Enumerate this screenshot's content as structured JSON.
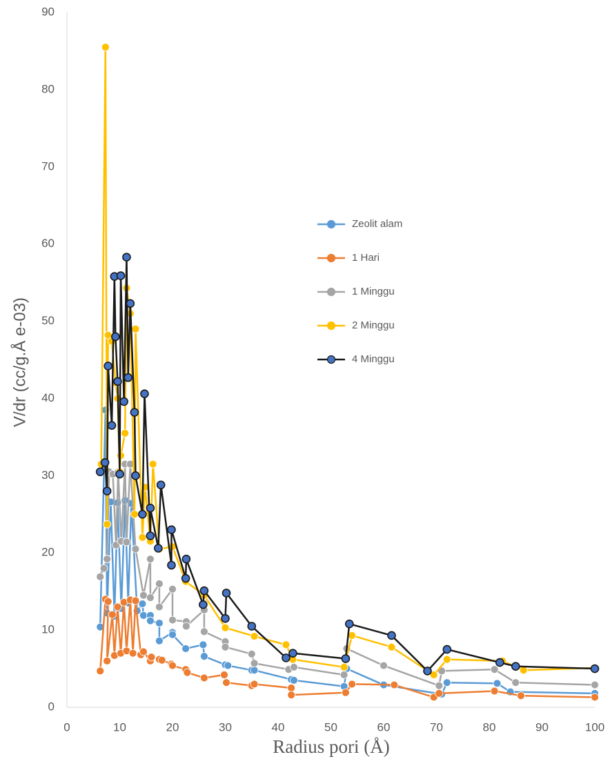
{
  "chart_data": {
    "type": "scatter-line",
    "xlabel": "Radius pori (Å)",
    "ylabel": "V/dr (cc/g.Å e-03)",
    "xlim": [
      0,
      100
    ],
    "xticks": [
      0,
      10,
      20,
      30,
      40,
      50,
      60,
      70,
      80,
      90,
      100
    ],
    "ylim": [
      0,
      90
    ],
    "yticks": [
      0,
      10,
      20,
      30,
      40,
      50,
      60,
      70,
      80,
      90
    ],
    "grid": false,
    "legend": "center",
    "series": [
      {
        "name": "Zeolit alam",
        "color": "#5b9bd5",
        "marker_color": "#5b9bd5",
        "x": [
          6.3,
          7.3,
          7.6,
          8.3,
          9,
          9.6,
          10.3,
          11,
          11.6,
          12.2,
          13.3,
          14.3,
          14.5,
          15.8,
          15.8,
          17.5,
          17.5,
          20,
          20,
          22.5,
          25.8,
          26,
          30,
          30.5,
          35,
          35.5,
          42.5,
          43,
          52.5,
          53,
          60,
          71,
          72,
          81.5,
          84,
          100
        ],
        "values": [
          10.4,
          38.5,
          12.2,
          26.6,
          11.8,
          26.5,
          12.8,
          26.8,
          13.5,
          26.4,
          12.5,
          13.4,
          11.9,
          11.9,
          11.2,
          10.9,
          8.6,
          9.7,
          9.4,
          7.6,
          8.1,
          6.6,
          5.5,
          5.4,
          4.8,
          4.8,
          3.6,
          3.5,
          2.7,
          5,
          2.9,
          1.7,
          3.2,
          3.1,
          2,
          1.8
        ]
      },
      {
        "name": "1 Hari",
        "color": "#ed7d31",
        "marker_color": "#ed7d31",
        "x": [
          6.3,
          7.3,
          7.8,
          7.6,
          8.6,
          9,
          9.6,
          10.2,
          10.8,
          11.3,
          12,
          12.5,
          13,
          14,
          14.5,
          15.8,
          16,
          17.5,
          18,
          19.8,
          20,
          22.5,
          22.8,
          26,
          29.8,
          30.2,
          35,
          35.5,
          42.5,
          42.5,
          52.8,
          54,
          62,
          69.5,
          70.5,
          81,
          86,
          100
        ],
        "values": [
          4.7,
          14,
          13.7,
          6,
          12,
          6.7,
          13,
          7,
          13.6,
          7.3,
          13.9,
          7,
          13.8,
          6.8,
          7.2,
          6,
          6.5,
          6.2,
          6.1,
          5.6,
          5.4,
          4.9,
          4.5,
          3.8,
          4.2,
          3.2,
          2.8,
          3,
          2.5,
          1.6,
          1.9,
          3,
          2.9,
          1.3,
          1.8,
          2.1,
          1.5,
          1.3
        ]
      },
      {
        "name": "1 Minggu",
        "color": "#a5a5a5",
        "marker_color": "#a5a5a5",
        "x": [
          6.3,
          7,
          7.6,
          8,
          8.7,
          9.3,
          9.7,
          10.3,
          11,
          11.3,
          12,
          13,
          14.5,
          15.8,
          15.8,
          17.5,
          17.5,
          20,
          20,
          22.6,
          22.6,
          26,
          26,
          30,
          30,
          35,
          35.5,
          42,
          43,
          52.5,
          53,
          60,
          70.5,
          71,
          81,
          85,
          100
        ],
        "values": [
          16.9,
          18,
          19.2,
          30.5,
          30.2,
          21,
          30.5,
          21.5,
          31.5,
          21.4,
          31.5,
          20.5,
          14.5,
          19.2,
          14.2,
          16,
          13,
          15.3,
          11.3,
          11.1,
          10.5,
          12.6,
          9.8,
          8.5,
          7.8,
          6.9,
          5.7,
          4.9,
          5.2,
          4.2,
          7.6,
          5.4,
          2.8,
          4.7,
          4.9,
          3.2,
          2.9
        ]
      },
      {
        "name": "2 Minggu",
        "color": "#ffc000",
        "marker_color": "#ffc000",
        "x": [
          6.5,
          7.3,
          7.6,
          7.8,
          8.5,
          9.2,
          9.6,
          10,
          10.2,
          11,
          11.3,
          12,
          12.8,
          13,
          14.3,
          14.8,
          15.8,
          16.3,
          17.5,
          20,
          22.5,
          26,
          30,
          35.5,
          41.5,
          42.8,
          52.5,
          54,
          61.5,
          69.5,
          72,
          82.5,
          86.5,
          100
        ],
        "values": [
          31.5,
          85.5,
          23.7,
          48.2,
          47.4,
          42,
          40,
          30.5,
          32.6,
          35.5,
          54.3,
          51,
          25,
          49,
          22,
          28.5,
          21.5,
          31.5,
          20.5,
          20.8,
          16.3,
          14.5,
          10.3,
          9.2,
          8.1,
          6.2,
          5.2,
          9.3,
          7.8,
          4.2,
          6.2,
          6,
          4.8,
          5.1
        ]
      },
      {
        "name": "4 Minggu",
        "color": "#1a1a1a",
        "marker_color": "#4472c4",
        "x": [
          6.3,
          7.2,
          7.6,
          7.8,
          8.5,
          9,
          9.2,
          9.6,
          10,
          10.2,
          10.8,
          11.3,
          11.6,
          12,
          12.8,
          13,
          14.3,
          14.7,
          15.8,
          15.8,
          17.3,
          17.8,
          19.8,
          19.8,
          22.5,
          22.6,
          25.8,
          26,
          30,
          30.2,
          35,
          41.5,
          42.8,
          52.8,
          53.5,
          61.5,
          68.3,
          72,
          82,
          85,
          100
        ],
        "values": [
          30.5,
          31.7,
          28,
          44.2,
          36.5,
          55.8,
          48,
          42.2,
          30.2,
          55.9,
          39.6,
          58.3,
          42.7,
          52.3,
          38.2,
          30,
          25,
          40.6,
          22.2,
          25.8,
          20.6,
          28.8,
          18.4,
          23,
          16.7,
          19.2,
          13.3,
          15.1,
          11.5,
          14.8,
          10.5,
          6.4,
          7,
          6.3,
          10.8,
          9.3,
          4.7,
          7.5,
          5.8,
          5.3,
          5
        ]
      }
    ]
  }
}
